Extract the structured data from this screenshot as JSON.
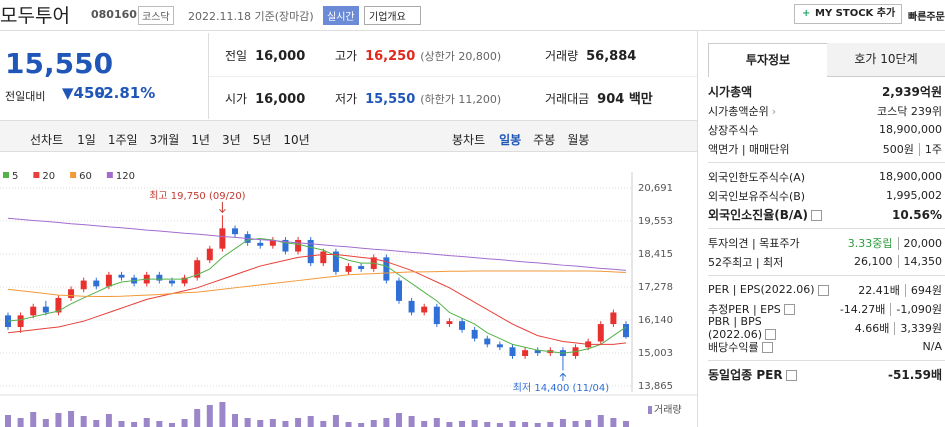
{
  "header": {
    "name": "모두투어",
    "code": "080160",
    "market": "코스닥",
    "date": "2022.11.18 기준(장마감)",
    "realtime": "실시간",
    "overview": "기업개요",
    "mystock": "MY STOCK 추가",
    "quick_order": "빠른주문"
  },
  "price": {
    "current": "15,550",
    "change_label": "전일대비",
    "change": "450",
    "change_pct": "-2.81%"
  },
  "stats": [
    [
      {
        "label": "전일",
        "value": "16,000"
      },
      {
        "label": "고가",
        "value": "16,250",
        "sub": "(상한가 20,800)"
      },
      {
        "label": "거래량",
        "value": "56,884"
      }
    ],
    [
      {
        "label": "시가",
        "value": "16,000"
      },
      {
        "label": "저가",
        "value": "15,550",
        "sub": "(하한가 11,200)"
      },
      {
        "label": "거래대금",
        "value": "904 백만"
      }
    ]
  ],
  "period_tabs": {
    "line_label": "선차트",
    "line": [
      "1일",
      "1주일",
      "3개월",
      "1년",
      "3년",
      "5년",
      "10년"
    ],
    "candle_label": "봉차트",
    "candle": [
      "일봉",
      "주봉",
      "월봉"
    ]
  },
  "info_tabs": [
    "투자정보",
    "호가 10단계"
  ],
  "info": [
    [
      {
        "label": "시가총액",
        "value": "2,939억원"
      },
      {
        "label": "시가총액순위",
        "value": "코스닥 239위"
      },
      {
        "label": "상장주식수",
        "value": "18,900,000"
      },
      {
        "label": "액면가 | 매매단위",
        "value": "500원",
        "value2": "1주"
      }
    ],
    [
      {
        "label": "외국인한도주식수(A)",
        "value": "18,900,000"
      },
      {
        "label": "외국인보유주식수(B)",
        "value": "1,995,002"
      },
      {
        "label": "외국인소진율(B/A)",
        "value": "10.56%"
      }
    ],
    [
      {
        "label": "투자의견 | 목표주가",
        "value": "3.33중립",
        "value2": "20,000"
      },
      {
        "label": "52주최고 | 최저",
        "value": "26,100",
        "value2": "14,350"
      }
    ],
    [
      {
        "label": "PER | EPS(2022.06)",
        "value": "22.41배",
        "value2": "694원"
      },
      {
        "label": "추정PER | EPS",
        "value": "-14.27배",
        "value2": "-1,090원"
      },
      {
        "label": "PBR | BPS (2022.06)",
        "value": "4.66배",
        "value2": "3,339원"
      },
      {
        "label": "배당수익률",
        "value": "N/A"
      }
    ],
    [
      {
        "label": "동일업종 PER",
        "value": "-51.59배"
      }
    ]
  ],
  "chart_data": {
    "type": "candlestick",
    "high_label": "최고 19,750 (09/20)",
    "low_label": "최저 14,400 (11/04)",
    "up_color": "#e8312f",
    "down_color": "#2f6fd6",
    "ylim": [
      13865,
      20691
    ],
    "yticks": [
      {
        "value": 20691,
        "label": "20,691"
      },
      {
        "value": 19553,
        "label": "19,553"
      },
      {
        "value": 18415,
        "label": "18,415"
      },
      {
        "value": 17278,
        "label": "17,278"
      },
      {
        "value": 16140,
        "label": "16,140"
      },
      {
        "value": 15003,
        "label": "15,003"
      },
      {
        "value": 13865,
        "label": "13,865"
      }
    ],
    "grid": true,
    "open": [
      16300,
      15900,
      16300,
      16600,
      16400,
      16900,
      17200,
      17500,
      17300,
      17700,
      17600,
      17400,
      17700,
      17500,
      17400,
      17600,
      18200,
      18600,
      19300,
      19100,
      18800,
      18700,
      18900,
      18500,
      18900,
      18100,
      18500,
      17800,
      18000,
      17900,
      18300,
      17500,
      16800,
      16400,
      16600,
      16000,
      16100,
      15800,
      15500,
      15300,
      15200,
      14900,
      15100,
      15000,
      15100,
      14900,
      15200,
      15400,
      16000,
      16000
    ],
    "high": [
      16400,
      16400,
      16700,
      16800,
      17000,
      17300,
      17600,
      17600,
      17800,
      17800,
      17700,
      17800,
      17800,
      17600,
      17700,
      18300,
      18700,
      19750,
      19400,
      19200,
      18900,
      19000,
      19000,
      19000,
      19000,
      18600,
      18600,
      18100,
      18100,
      18400,
      18400,
      17600,
      16900,
      16700,
      16700,
      16200,
      16200,
      15900,
      15600,
      15400,
      15300,
      15200,
      15200,
      15200,
      15200,
      15300,
      15500,
      16100,
      16500,
      16100
    ],
    "low": [
      15800,
      15700,
      16200,
      16300,
      16300,
      16800,
      17100,
      17200,
      17200,
      17500,
      17300,
      17300,
      17400,
      17300,
      17300,
      17500,
      18100,
      18500,
      19000,
      18700,
      18600,
      18600,
      18400,
      18400,
      18000,
      18000,
      17700,
      17700,
      17800,
      17800,
      17400,
      16700,
      16300,
      16300,
      15900,
      15900,
      15700,
      15400,
      15200,
      15100,
      14800,
      14800,
      14900,
      14900,
      14400,
      14800,
      15100,
      15300,
      15900,
      15500
    ],
    "close": [
      15900,
      16300,
      16600,
      16400,
      16900,
      17200,
      17500,
      17300,
      17700,
      17600,
      17400,
      17700,
      17500,
      17400,
      17600,
      18200,
      18600,
      19300,
      19100,
      18800,
      18700,
      18900,
      18500,
      18900,
      18100,
      18500,
      17800,
      18000,
      17900,
      18300,
      17500,
      16800,
      16400,
      16600,
      16000,
      16100,
      15800,
      15500,
      15300,
      15200,
      14900,
      15100,
      15000,
      15100,
      14900,
      15200,
      15400,
      16000,
      16400,
      15550
    ],
    "series": [
      {
        "name": "5",
        "color": "#53b34a",
        "values": [
          16100,
          16150,
          16250,
          16350,
          16450,
          16700,
          16900,
          17100,
          17300,
          17450,
          17500,
          17550,
          17550,
          17550,
          17550,
          17700,
          17900,
          18300,
          18600,
          18900,
          18950,
          18900,
          18800,
          18750,
          18650,
          18550,
          18350,
          18200,
          18100,
          18100,
          18000,
          17700,
          17400,
          17100,
          16800,
          16400,
          16200,
          16000,
          15700,
          15500,
          15300,
          15200,
          15100,
          15050,
          15000,
          15050,
          15150,
          15300,
          15600,
          15900
        ]
      },
      {
        "name": "20",
        "color": "#e8403a",
        "values": [
          15700,
          15750,
          15800,
          15850,
          15900,
          16000,
          16100,
          16250,
          16400,
          16550,
          16700,
          16850,
          16950,
          17050,
          17150,
          17250,
          17400,
          17550,
          17700,
          17850,
          18000,
          18100,
          18200,
          18300,
          18350,
          18400,
          18400,
          18350,
          18300,
          18250,
          18150,
          18000,
          17850,
          17650,
          17450,
          17250,
          17000,
          16750,
          16500,
          16250,
          16000,
          15800,
          15600,
          15500,
          15400,
          15350,
          15300,
          15300,
          15300,
          15350
        ]
      },
      {
        "name": "60",
        "color": "#f29a38",
        "values": [
          17200,
          17150,
          17100,
          17050,
          17000,
          16980,
          16960,
          16950,
          16950,
          16960,
          16980,
          17000,
          17020,
          17050,
          17080,
          17100,
          17150,
          17200,
          17250,
          17300,
          17350,
          17400,
          17450,
          17500,
          17550,
          17600,
          17650,
          17700,
          17720,
          17740,
          17760,
          17780,
          17800,
          17800,
          17810,
          17820,
          17820,
          17830,
          17830,
          17830,
          17830,
          17830,
          17830,
          17830,
          17830,
          17830,
          17830,
          17820,
          17800,
          17780
        ]
      },
      {
        "name": "120",
        "color": "#a26ccf",
        "values": [
          19650,
          19610,
          19570,
          19540,
          19500,
          19460,
          19430,
          19390,
          19350,
          19320,
          19280,
          19240,
          19210,
          19170,
          19130,
          19100,
          19060,
          19020,
          18990,
          18950,
          18910,
          18880,
          18840,
          18800,
          18770,
          18730,
          18690,
          18660,
          18620,
          18580,
          18550,
          18510,
          18470,
          18440,
          18400,
          18360,
          18330,
          18290,
          18250,
          18220,
          18180,
          18140,
          18110,
          18070,
          18030,
          18000,
          17960,
          17920,
          17890,
          17850
        ]
      }
    ],
    "volume_label": "거래량",
    "volume_color": "#9b86c9",
    "volume_ylim": [
      0,
      300000
    ],
    "volume": [
      120000,
      90000,
      150000,
      80000,
      140000,
      160000,
      110000,
      70000,
      130000,
      60000,
      50000,
      90000,
      60000,
      40000,
      80000,
      180000,
      220000,
      250000,
      130000,
      90000,
      70000,
      80000,
      60000,
      90000,
      110000,
      60000,
      120000,
      50000,
      40000,
      70000,
      90000,
      140000,
      110000,
      60000,
      90000,
      50000,
      60000,
      70000,
      50000,
      40000,
      60000,
      50000,
      40000,
      50000,
      80000,
      60000,
      70000,
      120000,
      90000,
      60000
    ]
  }
}
